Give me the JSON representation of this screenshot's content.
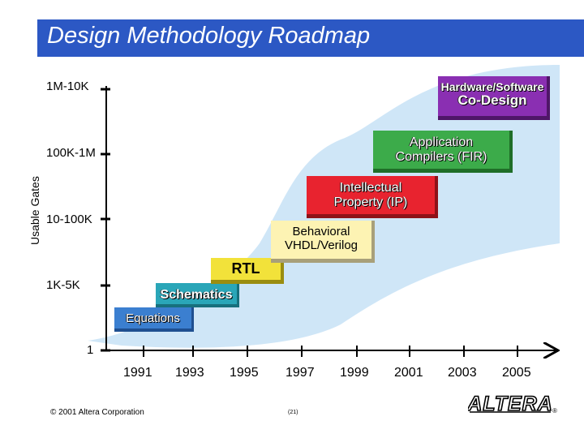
{
  "title": "Design Methodology Roadmap",
  "y_axis": {
    "title": "Usable Gates",
    "levels": [
      "1",
      "1K-5K",
      "10-100K",
      "100K-1M",
      "1M-10K"
    ]
  },
  "x_axis": {
    "labels": [
      "1991",
      "1993",
      "1995",
      "1997",
      "1999",
      "2001",
      "2003",
      "2005"
    ]
  },
  "stages": [
    {
      "name": "Equations",
      "lines": [
        "Equations"
      ],
      "color": "#3b7fd0"
    },
    {
      "name": "Schematics",
      "lines": [
        "Schematics"
      ],
      "color": "#2aa6b8"
    },
    {
      "name": "RTL",
      "lines": [
        "RTL"
      ],
      "color": "#f2e23a"
    },
    {
      "name": "Behavioral VHDL/Verilog",
      "lines": [
        "Behavioral",
        "VHDL/Verilog"
      ],
      "color": "#fdf3b3"
    },
    {
      "name": "Intellectual Property (IP)",
      "lines": [
        "Intellectual",
        "Property (IP)"
      ],
      "color": "#e8232f"
    },
    {
      "name": "Application Compilers (FIR)",
      "lines": [
        "Application",
        "Compilers (FIR)"
      ],
      "color": "#3cab4a"
    },
    {
      "name": "Hardware/Software Co-Design",
      "lines": [
        "Hardware/Software",
        "Co-Design"
      ],
      "color": "#8a2fb2"
    }
  ],
  "footer": {
    "copyright": "© 2001 Altera Corporation",
    "page": "(21)",
    "logo": "ALTERA",
    "registered": "®"
  },
  "colors": {
    "title_bar": "#2c58c4",
    "band": "#cfe6f7"
  }
}
